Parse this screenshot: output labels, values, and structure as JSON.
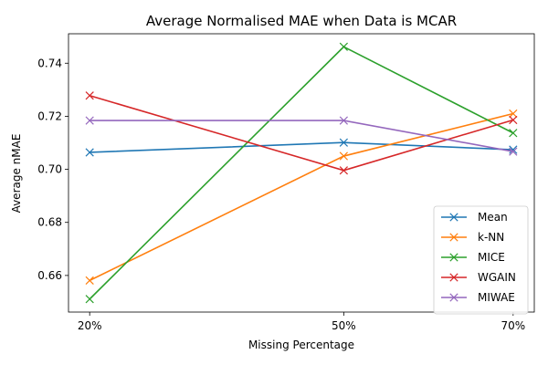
{
  "chart_data": {
    "type": "line",
    "title": "Average Normalised MAE when Data is MCAR",
    "xlabel": "Missing Percentage",
    "ylabel": "Average nMAE",
    "x": [
      20,
      50,
      70
    ],
    "x_tick_labels": [
      "20%",
      "50%",
      "70%"
    ],
    "xlim": [
      17.5,
      72.5
    ],
    "ylim": [
      0.6462,
      0.7511
    ],
    "y_ticks": [
      0.66,
      0.68,
      0.7,
      0.72,
      0.74
    ],
    "y_tick_labels": [
      "0.66",
      "0.68",
      "0.70",
      "0.72",
      "0.74"
    ],
    "marker": "x",
    "grid": false,
    "legend_position": "lower right",
    "series": [
      {
        "name": "Mean",
        "color": "#1f77b4",
        "values": [
          0.7064,
          0.7101,
          0.7074
        ]
      },
      {
        "name": "k-NN",
        "color": "#ff7f0e",
        "values": [
          0.6581,
          0.705,
          0.721
        ]
      },
      {
        "name": "MICE",
        "color": "#2ca02c",
        "values": [
          0.6511,
          0.7462,
          0.7137
        ]
      },
      {
        "name": "WGAIN",
        "color": "#d62728",
        "values": [
          0.7278,
          0.6996,
          0.7186
        ]
      },
      {
        "name": "MIWAE",
        "color": "#9467bd",
        "values": [
          0.7184,
          0.7184,
          0.7067
        ]
      }
    ]
  }
}
